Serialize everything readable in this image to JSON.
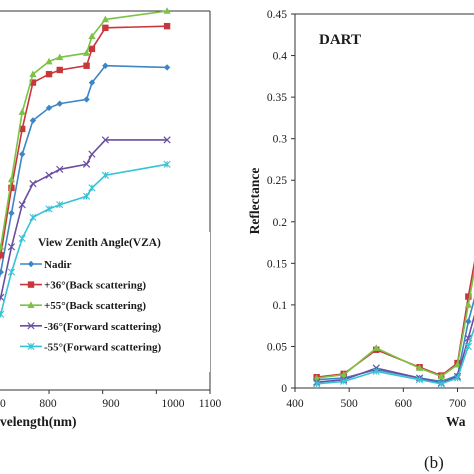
{
  "chart_data": [
    {
      "type": "line",
      "panel": "left",
      "title": "",
      "xlabel": "velength(nm)",
      "ylabel": "",
      "x_tick_labels": [
        "0",
        "800",
        "900",
        "1000",
        "1100"
      ],
      "xlim": [
        690,
        1100
      ],
      "ylim": [
        0,
        0.45
      ],
      "grid": false,
      "legend": {
        "title": "View Zenith Angle(VZA)",
        "placement": "bottom-right",
        "entries": [
          "Nadir",
          "+36°(Back scattering)",
          "+55°(Back scattering)",
          "-36°(Forward scattering)",
          "-55°(Forward scattering)"
        ]
      },
      "series": [
        {
          "name": "Nadir",
          "color": "#3d86c6",
          "marker": "diamond",
          "x": [
            690,
            710,
            730,
            750,
            770,
            800,
            820,
            870,
            880,
            905,
            1020
          ],
          "y": [
            0.09,
            0.14,
            0.21,
            0.28,
            0.32,
            0.335,
            0.34,
            0.345,
            0.365,
            0.385,
            0.383
          ]
        },
        {
          "name": "+36°(Back scattering)",
          "color": "#c8373b",
          "marker": "square",
          "x": [
            690,
            710,
            730,
            750,
            770,
            800,
            820,
            870,
            880,
            905,
            1020
          ],
          "y": [
            0.11,
            0.16,
            0.24,
            0.31,
            0.365,
            0.375,
            0.38,
            0.385,
            0.405,
            0.43,
            0.432
          ]
        },
        {
          "name": "+55°(Back scattering)",
          "color": "#7cc245",
          "marker": "triangle",
          "x": [
            690,
            710,
            730,
            750,
            770,
            800,
            820,
            870,
            880,
            905,
            1020
          ],
          "y": [
            0.115,
            0.17,
            0.25,
            0.33,
            0.375,
            0.39,
            0.395,
            0.4,
            0.42,
            0.44,
            0.45
          ]
        },
        {
          "name": "-36°(Forward scattering)",
          "color": "#6a4fa0",
          "marker": "x",
          "x": [
            690,
            710,
            730,
            750,
            770,
            800,
            820,
            870,
            880,
            905,
            1020
          ],
          "y": [
            0.075,
            0.11,
            0.17,
            0.22,
            0.245,
            0.255,
            0.262,
            0.268,
            0.28,
            0.297,
            0.297
          ]
        },
        {
          "name": "-55°(Forward scattering)",
          "color": "#35c3d5",
          "marker": "star",
          "x": [
            690,
            710,
            730,
            750,
            770,
            800,
            820,
            870,
            880,
            905,
            1020
          ],
          "y": [
            0.06,
            0.09,
            0.14,
            0.18,
            0.205,
            0.215,
            0.22,
            0.23,
            0.24,
            0.255,
            0.268
          ]
        }
      ]
    },
    {
      "type": "line",
      "panel": "right",
      "title": "DART",
      "xlabel": "Wa",
      "ylabel": "Reflectance",
      "y_tick_labels": [
        "0",
        "0.05",
        "0.1",
        "0.15",
        "0.2",
        "0.25",
        "0.3",
        "0.35",
        "0.4",
        "0.45"
      ],
      "x_tick_labels": [
        "400",
        "500",
        "600",
        "700"
      ],
      "xlim": [
        400,
        760
      ],
      "ylim": [
        0,
        0.45
      ],
      "grid": false,
      "series": [
        {
          "name": "Nadir",
          "color": "#3d86c6",
          "marker": "diamond",
          "x": [
            440,
            490,
            550,
            630,
            670,
            700,
            720,
            745
          ],
          "y": [
            0.01,
            0.012,
            0.022,
            0.012,
            0.008,
            0.015,
            0.08,
            0.14
          ]
        },
        {
          "name": "+36°(Back scattering)",
          "color": "#c8373b",
          "marker": "square",
          "x": [
            440,
            490,
            550,
            630,
            670,
            700,
            720,
            745
          ],
          "y": [
            0.013,
            0.017,
            0.046,
            0.025,
            0.015,
            0.03,
            0.11,
            0.2
          ]
        },
        {
          "name": "+55°(Back scattering)",
          "color": "#7cc245",
          "marker": "triangle",
          "x": [
            440,
            490,
            550,
            630,
            670,
            700,
            720,
            745
          ],
          "y": [
            0.012,
            0.016,
            0.048,
            0.024,
            0.014,
            0.028,
            0.1,
            0.19
          ]
        },
        {
          "name": "-36°(Forward scattering)",
          "color": "#6a4fa0",
          "marker": "x",
          "x": [
            440,
            490,
            550,
            630,
            670,
            700,
            720,
            745
          ],
          "y": [
            0.007,
            0.01,
            0.024,
            0.012,
            0.006,
            0.014,
            0.06,
            0.12
          ]
        },
        {
          "name": "-55°(Forward scattering)",
          "color": "#35c3d5",
          "marker": "star",
          "x": [
            440,
            490,
            550,
            630,
            670,
            700,
            720,
            745
          ],
          "y": [
            0.005,
            0.008,
            0.02,
            0.01,
            0.005,
            0.012,
            0.05,
            0.1
          ]
        }
      ]
    }
  ],
  "panel_label": "(b)"
}
